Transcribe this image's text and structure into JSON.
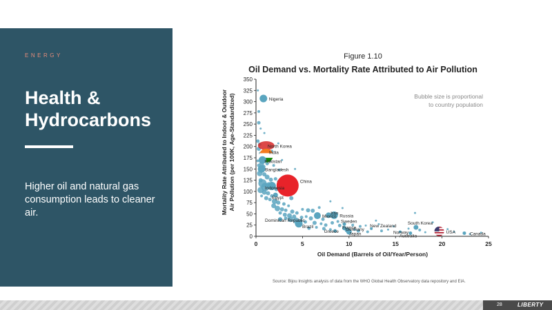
{
  "panel": {
    "kicker": "ENERGY",
    "title": "Health & Hydrocarbons",
    "body": "Higher oil and natural gas consumption leads to cleaner air."
  },
  "footer": {
    "page_number": "28",
    "logo": "LIBERTY",
    "source": "Source: Bijou Insights analysis of data from the WHO Global Health Observatory data repository and EIA."
  },
  "chart_data": {
    "type": "scatter",
    "figure_label": "Figure 1.10",
    "title": "Oil Demand vs. Mortality Rate Attributed to Air Pollution",
    "xlabel": "Oil Demand (Barrels of Oil/Year/Person)",
    "ylabel_line1": "Mortality Rate Attributed to Indoor & Outdoor",
    "ylabel_line2": "Air Pollution (per 100K, Age-Standardized)",
    "annotation": [
      "Bubble size is proportional",
      "to country population"
    ],
    "xlim": [
      0,
      25
    ],
    "ylim": [
      0,
      350
    ],
    "xticks": [
      0,
      5,
      10,
      15,
      20,
      25
    ],
    "yticks": [
      0,
      25,
      50,
      75,
      100,
      125,
      150,
      175,
      200,
      225,
      250,
      275,
      300,
      325,
      350
    ],
    "colors": {
      "bubble": "#5aa5bf",
      "china": "#e8232a",
      "india_saffron": "#f47b20",
      "india_green": "#138808",
      "nk_red": "#d62828",
      "usa_red": "#b22234",
      "usa_blue": "#3c3b6e",
      "axis": "#222222"
    },
    "labeled_points": [
      {
        "name": "Nigeria",
        "x": 0.8,
        "y": 307,
        "r": 5.5
      },
      {
        "name": "North Korea",
        "x": 1.1,
        "y": 202,
        "r": 4
      },
      {
        "name": "India",
        "x": 1.1,
        "y": 180,
        "r": 10,
        "flag": "india"
      },
      {
        "name": "Pakistan",
        "x": 0.7,
        "y": 170,
        "r": 5.5
      },
      {
        "name": "Bangladesh",
        "x": 0.6,
        "y": 150,
        "r": 5.5
      },
      {
        "name": "China",
        "x": 3.4,
        "y": 113,
        "r": 16,
        "flag": "china"
      },
      {
        "name": "Indonesia",
        "x": 1.7,
        "y": 112,
        "r": 6
      },
      {
        "name": "Egypt",
        "x": 2.1,
        "y": 92,
        "r": 3.5
      },
      {
        "name": "Dominican Republic",
        "x": 2.6,
        "y": 38,
        "r": 3
      },
      {
        "name": "Mexico",
        "x": 6.6,
        "y": 46,
        "r": 5
      },
      {
        "name": "Brazil",
        "x": 4.6,
        "y": 28,
        "r": 5.5
      },
      {
        "name": "Iran",
        "x": 7.8,
        "y": 47,
        "r": 4
      },
      {
        "name": "Russia",
        "x": 8.4,
        "y": 47,
        "r": 5.5
      },
      {
        "name": "Sweden",
        "x": 9.5,
        "y": 27,
        "r": 2.5
      },
      {
        "name": "France",
        "x": 9.5,
        "y": 18,
        "r": 3
      },
      {
        "name": "Germany",
        "x": 9.8,
        "y": 14,
        "r": 3.5
      },
      {
        "name": "Japan",
        "x": 10.0,
        "y": 10,
        "r": 4
      },
      {
        "name": "Greece",
        "x": 8.5,
        "y": 12,
        "r": 2.5
      },
      {
        "name": "New Zealand",
        "x": 12.4,
        "y": 17,
        "r": 2
      },
      {
        "name": "Norway",
        "x": 15.5,
        "y": 10,
        "r": 2
      },
      {
        "name": "Australia",
        "x": 16.6,
        "y": 7,
        "r": 2.5
      },
      {
        "name": "South Korea",
        "x": 17.2,
        "y": 20,
        "r": 3.5
      },
      {
        "name": "USA",
        "x": 19.7,
        "y": 11,
        "r": 7,
        "flag": "usa"
      },
      {
        "name": "Canada",
        "x": 22.4,
        "y": 7,
        "r": 2.5
      }
    ],
    "other_points": [
      [
        0.2,
        325,
        1.5
      ],
      [
        0.3,
        278,
        2
      ],
      [
        0.3,
        253,
        2.5
      ],
      [
        0.5,
        240,
        1.5
      ],
      [
        0.2,
        212,
        2.5
      ],
      [
        0.4,
        205,
        2.5
      ],
      [
        0.3,
        195,
        3
      ],
      [
        0.5,
        185,
        2.5
      ],
      [
        0.2,
        168,
        2
      ],
      [
        0.6,
        162,
        3.5
      ],
      [
        0.3,
        158,
        2.5
      ],
      [
        0.8,
        155,
        3
      ],
      [
        1.2,
        162,
        2.5
      ],
      [
        1.5,
        168,
        2
      ],
      [
        1.9,
        158,
        2
      ],
      [
        2.5,
        148,
        2
      ],
      [
        0.4,
        140,
        4
      ],
      [
        0.9,
        138,
        3
      ],
      [
        1.2,
        132,
        3.5
      ],
      [
        1.6,
        126,
        3
      ],
      [
        0.5,
        125,
        3
      ],
      [
        2.1,
        128,
        2.5
      ],
      [
        2.4,
        122,
        2
      ],
      [
        0.7,
        118,
        6
      ],
      [
        1.0,
        110,
        6
      ],
      [
        1.4,
        113,
        5
      ],
      [
        2.2,
        105,
        3
      ],
      [
        2.8,
        100,
        2.5
      ],
      [
        0.5,
        103,
        4.5
      ],
      [
        0.9,
        98,
        3.5
      ],
      [
        1.3,
        96,
        3
      ],
      [
        1.7,
        90,
        2.5
      ],
      [
        3.8,
        85,
        3
      ],
      [
        0.6,
        90,
        2
      ],
      [
        1.1,
        85,
        3
      ],
      [
        1.5,
        82,
        2.5
      ],
      [
        2.0,
        78,
        4
      ],
      [
        2.4,
        75,
        3
      ],
      [
        3.0,
        72,
        2.5
      ],
      [
        3.5,
        68,
        2
      ],
      [
        1.9,
        68,
        3.5
      ],
      [
        2.3,
        62,
        4
      ],
      [
        2.8,
        60,
        3
      ],
      [
        3.2,
        58,
        2.5
      ],
      [
        3.9,
        55,
        3
      ],
      [
        4.4,
        52,
        2.5
      ],
      [
        5.0,
        60,
        2
      ],
      [
        5.6,
        58,
        3
      ],
      [
        6.1,
        57,
        3
      ],
      [
        6.8,
        64,
        2
      ],
      [
        2.6,
        52,
        2.5
      ],
      [
        3.1,
        48,
        3
      ],
      [
        3.6,
        46,
        3.5
      ],
      [
        4.1,
        44,
        3
      ],
      [
        4.9,
        42,
        2.5
      ],
      [
        5.4,
        44,
        2
      ],
      [
        5.9,
        40,
        3
      ],
      [
        7.2,
        38,
        2.5
      ],
      [
        3.2,
        40,
        2.5
      ],
      [
        3.7,
        38,
        4
      ],
      [
        4.3,
        35,
        4.5
      ],
      [
        4.8,
        34,
        3
      ],
      [
        5.3,
        32,
        2.5
      ],
      [
        6.3,
        30,
        3
      ],
      [
        7.0,
        28,
        2
      ],
      [
        7.5,
        25,
        2.5
      ],
      [
        8.2,
        30,
        2.5
      ],
      [
        8.8,
        33,
        2
      ],
      [
        9.0,
        24,
        2.5
      ],
      [
        10.4,
        25,
        2
      ],
      [
        11.2,
        22,
        2
      ],
      [
        11.8,
        24,
        1.5
      ],
      [
        13.2,
        27,
        1.5
      ],
      [
        5.7,
        18,
        2.5
      ],
      [
        6.5,
        20,
        2
      ],
      [
        7.3,
        17,
        2.5
      ],
      [
        8.0,
        15,
        2
      ],
      [
        10.6,
        15,
        2
      ],
      [
        11.0,
        12,
        2.5
      ],
      [
        12.0,
        10,
        2
      ],
      [
        13.5,
        12,
        2
      ],
      [
        14.2,
        15,
        1.5
      ],
      [
        16.4,
        17,
        1.5
      ],
      [
        17.6,
        14,
        2
      ],
      [
        18.2,
        9,
        1.5
      ],
      [
        20.6,
        16,
        1.5
      ],
      [
        21.3,
        10,
        1.5
      ],
      [
        23.0,
        5,
        1.5
      ],
      [
        24.2,
        8,
        1.5
      ],
      [
        14.8,
        22,
        1.5
      ],
      [
        17.1,
        52,
        1.5
      ],
      [
        19.0,
        31,
        1.5
      ],
      [
        12.9,
        35,
        1.5
      ],
      [
        9.3,
        63,
        1.5
      ],
      [
        8.0,
        78,
        1.5
      ],
      [
        4.2,
        150,
        1.5
      ],
      [
        1.7,
        190,
        2
      ],
      [
        2.4,
        207,
        1.5
      ],
      [
        0.9,
        230,
        1.5
      ],
      [
        2.8,
        170,
        1.5
      ]
    ]
  }
}
